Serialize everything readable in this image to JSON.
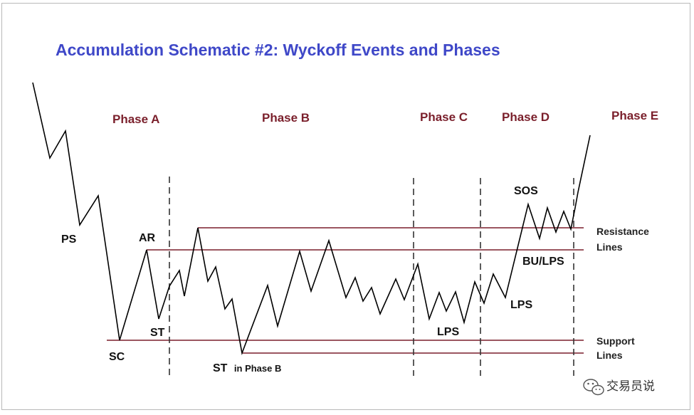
{
  "title": "Accumulation Schematic #2: Wyckoff Events and Phases",
  "phases": {
    "a": "Phase A",
    "b": "Phase B",
    "c": "Phase C",
    "d": "Phase D",
    "e": "Phase E"
  },
  "events": {
    "ps": "PS",
    "sc": "SC",
    "ar": "AR",
    "st": "ST",
    "st_phase_b_main": "ST",
    "st_phase_b_suffix": "in Phase B",
    "lps_c": "LPS",
    "lps_d": "LPS",
    "sos": "SOS",
    "bu_lps": "BU/LPS"
  },
  "line_labels": {
    "resistance_1": "Resistance",
    "resistance_2": "Lines",
    "support_1": "Support",
    "support_2": "Lines"
  },
  "watermark": {
    "icon": "wechat-icon",
    "text": "交易员说"
  },
  "colors": {
    "title": "#3f48c8",
    "phase_label": "#7a1f2b",
    "level_line": "#7a1f2b",
    "price_path": "#000000",
    "divider": "#333333"
  }
}
